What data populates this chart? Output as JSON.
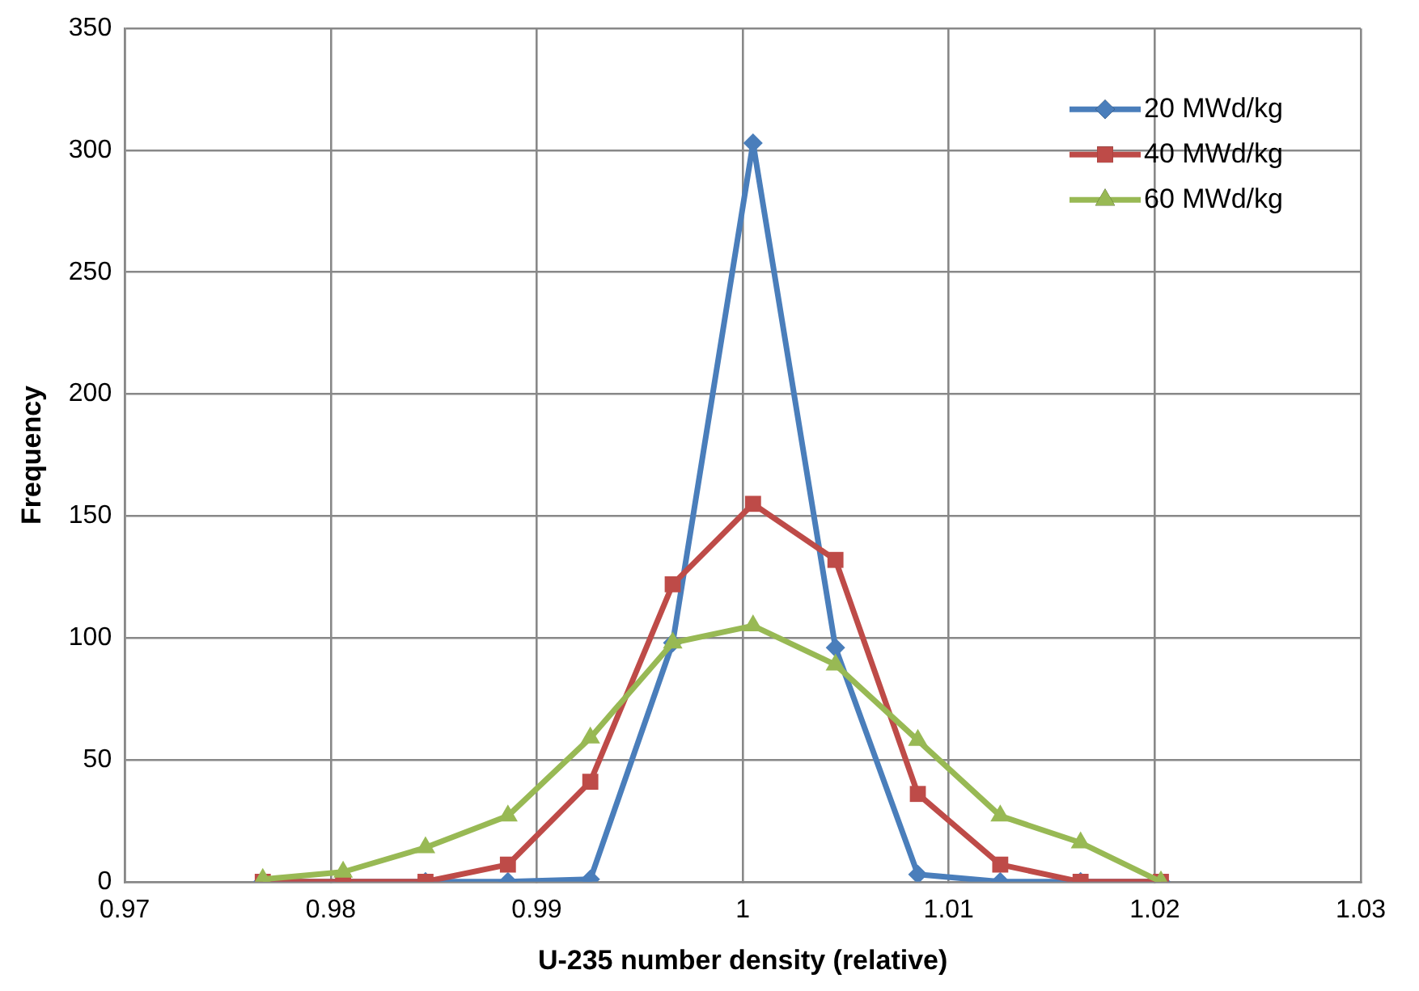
{
  "chart_data": {
    "type": "line",
    "xlabel": "U-235 number density (relative)",
    "ylabel": "Frequency",
    "x": [
      0.9767,
      0.9806,
      0.9846,
      0.9886,
      0.9926,
      0.9966,
      1.0005,
      1.0045,
      1.0085,
      1.0125,
      1.0164,
      1.0203
    ],
    "series": [
      {
        "name": "20 MWd/kg",
        "color": "#4a7ebb",
        "marker": "diamond",
        "values": [
          0,
          0,
          0,
          0,
          1,
          98,
          303,
          96,
          3,
          0,
          0,
          0
        ]
      },
      {
        "name": "40 MWd/kg",
        "color": "#be4b48",
        "marker": "square",
        "values": [
          0,
          0,
          0,
          7,
          41,
          122,
          155,
          132,
          36,
          7,
          0,
          0
        ]
      },
      {
        "name": "60 MWd/kg",
        "color": "#98b954",
        "marker": "triangle",
        "values": [
          1,
          4,
          14,
          27,
          59,
          98,
          105,
          89,
          58,
          27,
          16,
          0
        ]
      }
    ],
    "xlim": [
      0.97,
      1.03
    ],
    "xticks": [
      0.97,
      0.98,
      0.99,
      1,
      1.01,
      1.02,
      1.03
    ],
    "ylim": [
      0,
      350
    ],
    "yticks": [
      0,
      50,
      100,
      150,
      200,
      250,
      300,
      350
    ],
    "grid": true,
    "legend": "top right",
    "line_style": "solid"
  }
}
